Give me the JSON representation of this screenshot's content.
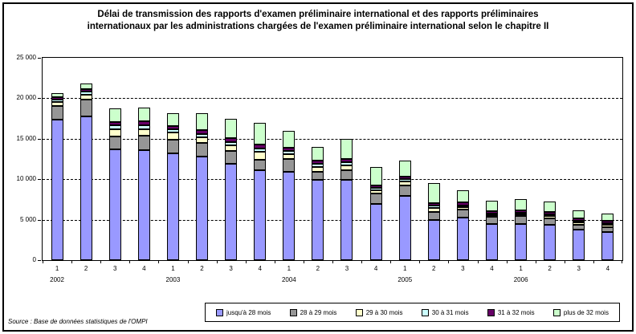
{
  "page": {
    "title": "Délai de transmission des rapports d'examen préliminaire international et des rapports préliminaires internationaux par les administrations chargées de l'examen préliminaire international selon le chapitre II",
    "source": "Source : Base de données statistiques de l'OMPI"
  },
  "chart_data": {
    "type": "bar",
    "stacked": true,
    "title": "Délai de transmission des rapports d'examen préliminaire international et des rapports préliminaires internationaux par les administrations chargées de l'examen préliminaire international selon le chapitre II",
    "xlabel": "",
    "ylabel": "",
    "ylim": [
      0,
      25000
    ],
    "grid": "horizontal-dashed",
    "legend_position": "bottom",
    "yticks": [
      {
        "value": 0,
        "label": "0"
      },
      {
        "value": 5000,
        "label": "5 000"
      },
      {
        "value": 10000,
        "label": "10 000"
      },
      {
        "value": 15000,
        "label": "15 000"
      },
      {
        "value": 20000,
        "label": "20 000"
      },
      {
        "value": 25000,
        "label": "25 000"
      }
    ],
    "groups": [
      {
        "year": "2002",
        "quarters": [
          "1",
          "2",
          "3",
          "4"
        ]
      },
      {
        "year": "2003",
        "quarters": [
          "1",
          "2",
          "3",
          "4"
        ]
      },
      {
        "year": "2004",
        "quarters": [
          "1",
          "2",
          "3",
          "4"
        ]
      },
      {
        "year": "2005",
        "quarters": [
          "1",
          "2",
          "3",
          "4"
        ]
      },
      {
        "year": "2006",
        "quarters": [
          "1",
          "2",
          "3",
          "4"
        ]
      }
    ],
    "categories": [
      "2002-1",
      "2002-2",
      "2002-3",
      "2002-4",
      "2003-1",
      "2003-2",
      "2003-3",
      "2003-4",
      "2004-1",
      "2004-2",
      "2004-3",
      "2004-4",
      "2005-1",
      "2005-2",
      "2005-3",
      "2005-4",
      "2006-1",
      "2006-2",
      "2006-3",
      "2006-4"
    ],
    "series": [
      {
        "name": "jusqu'à 28 mois",
        "color": "#9999FF",
        "values": [
          17400,
          17800,
          13700,
          13600,
          13200,
          12800,
          11900,
          11100,
          10900,
          9900,
          9900,
          6900,
          7900,
          5000,
          5300,
          4500,
          4500,
          4400,
          3800,
          3500
        ]
      },
      {
        "name": "28 à 29 mois",
        "color": "#969696",
        "values": [
          1700,
          2100,
          1600,
          1800,
          1700,
          1700,
          1600,
          1300,
          1600,
          1000,
          1200,
          1300,
          1300,
          1000,
          1000,
          900,
          1000,
          800,
          600,
          600
        ]
      },
      {
        "name": "29 à 30 mois",
        "color": "#FFFFCC",
        "values": [
          500,
          600,
          900,
          800,
          900,
          700,
          700,
          1000,
          600,
          600,
          600,
          400,
          500,
          500,
          300,
          200,
          200,
          250,
          250,
          250
        ]
      },
      {
        "name": "30 à 31 mois",
        "color": "#CCFFFF",
        "values": [
          300,
          400,
          500,
          500,
          400,
          400,
          400,
          400,
          400,
          400,
          400,
          300,
          300,
          300,
          200,
          150,
          150,
          150,
          150,
          150
        ]
      },
      {
        "name": "31 à 32 mois",
        "color": "#660066",
        "values": [
          300,
          300,
          400,
          500,
          400,
          500,
          500,
          500,
          400,
          400,
          400,
          300,
          300,
          300,
          400,
          250,
          250,
          250,
          250,
          250
        ]
      },
      {
        "name": "plus de 32 mois",
        "color": "#CCFFCC",
        "values": [
          500,
          700,
          1700,
          1700,
          1600,
          2100,
          2400,
          2700,
          2100,
          1700,
          2500,
          2300,
          2000,
          2500,
          1500,
          1300,
          1400,
          1250,
          1000,
          900
        ]
      }
    ]
  }
}
